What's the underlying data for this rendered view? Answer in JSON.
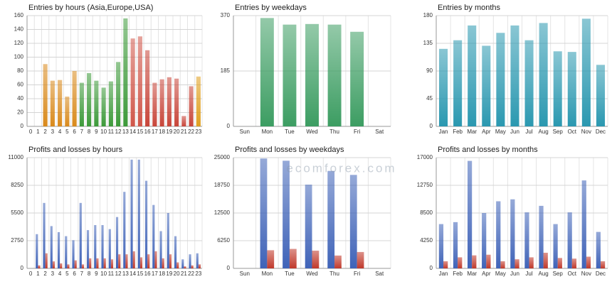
{
  "watermark": "ecomforex.com",
  "chart_data": [
    {
      "type": "bar",
      "title": "Entries by hours (Asia,Europe,USA)",
      "categories": [
        "0",
        "1",
        "2",
        "3",
        "4",
        "5",
        "6",
        "7",
        "8",
        "9",
        "10",
        "11",
        "12",
        "13",
        "14",
        "15",
        "16",
        "17",
        "18",
        "19",
        "20",
        "21",
        "22",
        "23"
      ],
      "values": [
        0,
        0,
        90,
        66,
        67,
        43,
        80,
        63,
        77,
        66,
        56,
        65,
        93,
        156,
        127,
        130,
        110,
        63,
        68,
        71,
        69,
        15,
        58,
        72
      ],
      "colors": [
        "#d98a1c",
        "#d98a1c",
        "#d98a1c",
        "#d98a1c",
        "#d98a1c",
        "#d98a1c",
        "#d98a1c",
        "#3d9a3a",
        "#3d9a3a",
        "#3d9a3a",
        "#3d9a3a",
        "#3d9a3a",
        "#3d9a3a",
        "#3d9a3a",
        "#d0574a",
        "#d0574a",
        "#c8463a",
        "#c8463a",
        "#c8463a",
        "#c8463a",
        "#c8463a",
        "#c8463a",
        "#c8463a",
        "#e0a020"
      ],
      "ylim": [
        0,
        160
      ],
      "yticks": [
        0,
        20,
        40,
        60,
        80,
        100,
        120,
        140,
        160
      ],
      "grid": true
    },
    {
      "type": "bar",
      "title": "Entries by weekdays",
      "categories": [
        "Sun",
        "Mon",
        "Tue",
        "Wed",
        "Thu",
        "Fri",
        "Sat"
      ],
      "values": [
        0,
        362,
        340,
        342,
        340,
        316,
        0
      ],
      "color": "#3c9d62",
      "ylim": [
        0,
        370
      ],
      "yticks": [
        0,
        185,
        370
      ],
      "grid": true
    },
    {
      "type": "bar",
      "title": "Entries by months",
      "categories": [
        "Jan",
        "Feb",
        "Mar",
        "Apr",
        "May",
        "Jun",
        "Jul",
        "Aug",
        "Sep",
        "Oct",
        "Nov",
        "Dec"
      ],
      "values": [
        126,
        140,
        164,
        131,
        152,
        164,
        140,
        168,
        122,
        121,
        175,
        100
      ],
      "color": "#2a98b0",
      "ylim": [
        0,
        180
      ],
      "yticks": [
        0,
        45,
        90,
        135,
        180
      ],
      "grid": true
    },
    {
      "type": "grouped-bar",
      "title": "Profits and losses by hours",
      "categories": [
        "0",
        "1",
        "2",
        "3",
        "4",
        "5",
        "6",
        "7",
        "8",
        "9",
        "10",
        "11",
        "12",
        "13",
        "14",
        "15",
        "16",
        "17",
        "18",
        "19",
        "20",
        "21",
        "22",
        "23"
      ],
      "series": [
        {
          "color": "#3f63b8",
          "values": [
            0,
            3400,
            6500,
            4200,
            3600,
            3200,
            2800,
            6500,
            3800,
            4300,
            4300,
            3900,
            5100,
            7600,
            10800,
            10800,
            8700,
            6300,
            3700,
            5500,
            3200,
            900,
            1400,
            1500
          ]
        },
        {
          "color": "#c0392b",
          "values": [
            0,
            300,
            1500,
            700,
            500,
            400,
            800,
            400,
            1000,
            1000,
            1000,
            900,
            1400,
            1400,
            1700,
            1100,
            1400,
            1700,
            1000,
            1400,
            600,
            200,
            300,
            400
          ]
        }
      ],
      "ylim": [
        0,
        11000
      ],
      "yticks": [
        0,
        2750,
        5500,
        8250,
        11000
      ],
      "grid": true
    },
    {
      "type": "grouped-bar",
      "title": "Profits and losses by weekdays",
      "categories": [
        "Sun",
        "Mon",
        "Tue",
        "Wed",
        "Thu",
        "Fri",
        "Sat"
      ],
      "series": [
        {
          "color": "#3f63b8",
          "values": [
            0,
            24800,
            24300,
            18900,
            22000,
            21100,
            0
          ]
        },
        {
          "color": "#c0392b",
          "values": [
            0,
            4100,
            4400,
            4000,
            2900,
            3700,
            0
          ]
        }
      ],
      "ylim": [
        0,
        25000
      ],
      "yticks": [
        0,
        6250,
        12500,
        18750,
        25000
      ],
      "grid": true
    },
    {
      "type": "grouped-bar",
      "title": "Profits and losses by months",
      "categories": [
        "Jan",
        "Feb",
        "Mar",
        "Apr",
        "May",
        "Jun",
        "Jul",
        "Aug",
        "Sep",
        "Oct",
        "Nov",
        "Dec"
      ],
      "series": [
        {
          "color": "#3f63b8",
          "values": [
            6800,
            7100,
            16500,
            8500,
            10300,
            10600,
            8600,
            9600,
            6800,
            8600,
            13500,
            5600
          ]
        },
        {
          "color": "#c0392b",
          "values": [
            1100,
            1700,
            2000,
            2100,
            1100,
            1400,
            1700,
            2400,
            1600,
            1500,
            1800,
            1100
          ]
        }
      ],
      "ylim": [
        0,
        17000
      ],
      "yticks": [
        0,
        4250,
        8500,
        12750,
        17000
      ],
      "grid": true
    }
  ]
}
